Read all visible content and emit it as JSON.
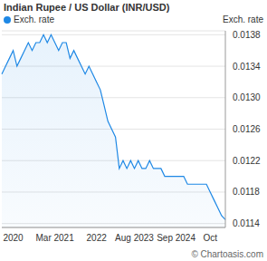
{
  "chart_data": {
    "type": "area",
    "title": "Indian Rupee / US Dollar (INR/USD)",
    "y_label": "Exch. rate",
    "annotations": [
      "© Chartoasis.com"
    ],
    "categories": [
      null,
      null,
      null,
      "2020",
      null,
      null,
      null,
      null,
      null,
      null,
      null,
      null,
      null,
      null,
      "Mar 2021",
      null,
      null,
      null,
      null,
      null,
      null,
      null,
      null,
      null,
      null,
      "2022",
      null,
      null,
      null,
      null,
      null,
      null,
      null,
      null,
      null,
      "Aug 2023",
      null,
      null,
      null,
      null,
      null,
      null,
      null,
      null,
      null,
      null,
      "Sep 2024",
      null,
      null,
      null,
      null,
      null,
      null,
      null,
      null,
      "Oct",
      null,
      null,
      null,
      null
    ],
    "series": [
      {
        "name": "Exch. rate",
        "color": "#1e88e5",
        "values": [
          0.0133,
          0.0134,
          0.0135,
          0.0136,
          0.0134,
          0.0135,
          0.0136,
          0.0137,
          0.0136,
          0.0137,
          0.0137,
          0.0138,
          0.0137,
          0.0138,
          0.0137,
          0.0136,
          0.0137,
          0.0137,
          0.0135,
          0.0136,
          0.0135,
          0.0134,
          0.0133,
          0.0134,
          0.0133,
          0.0132,
          0.0131,
          0.0129,
          0.0127,
          0.0126,
          0.0125,
          0.0121,
          0.0122,
          0.0121,
          0.0122,
          0.0121,
          0.0122,
          0.0121,
          0.0121,
          0.0122,
          0.0121,
          0.0121,
          0.0121,
          0.012,
          0.012,
          0.012,
          0.012,
          0.012,
          0.012,
          0.0119,
          0.0119,
          0.0119,
          0.0119,
          0.0119,
          0.0119,
          0.0118,
          0.0117,
          0.0116,
          0.0115,
          0.01145
        ]
      }
    ],
    "ylim": [
      0.01135,
      0.01385
    ],
    "yticks": [
      0.0114,
      0.0118,
      0.0122,
      0.0126,
      {
        "value": 0.013,
        "label": "0.0130"
      },
      0.0134,
      0.0138
    ],
    "grid": true,
    "legend": "top-left"
  }
}
